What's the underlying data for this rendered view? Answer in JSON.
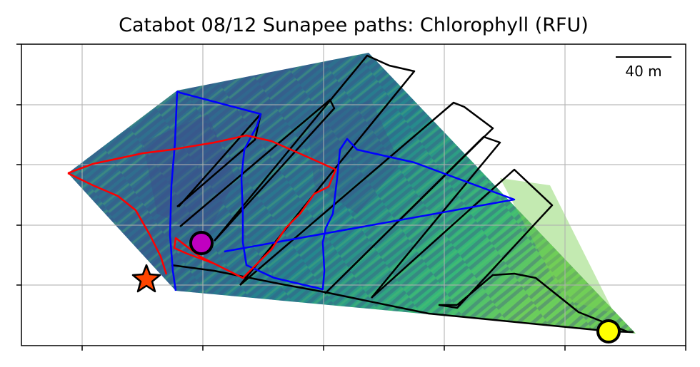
{
  "chart_data": {
    "type": "scatter",
    "title": "Catabot 08/12 Sunapee paths: Chlorophyll (RFU)",
    "xlabel": "",
    "ylabel": "",
    "x_tick_count": 5,
    "y_tick_count": 5,
    "grid": true,
    "tick_labels_shown": false,
    "scale_bar_label": "40 m",
    "scale_bar_length_m": 40,
    "colormap": "viridis",
    "colors": {
      "hull_dark": "#3b528b",
      "hull_mid": "#21918c",
      "hull_light": "#5ec962",
      "path_black": "#000000",
      "path_blue": "#0000ff",
      "path_red": "#ff0000",
      "marker_magenta": "#c000c0",
      "marker_yellow": "#ffff00",
      "marker_star": "#ff4500"
    },
    "markers": [
      {
        "name": "magenta-circle",
        "shape": "circle"
      },
      {
        "name": "yellow-circle",
        "shape": "circle"
      },
      {
        "name": "orange-star",
        "shape": "star"
      }
    ],
    "series": [
      {
        "color": "black"
      },
      {
        "color": "blue"
      },
      {
        "color": "red"
      }
    ]
  }
}
